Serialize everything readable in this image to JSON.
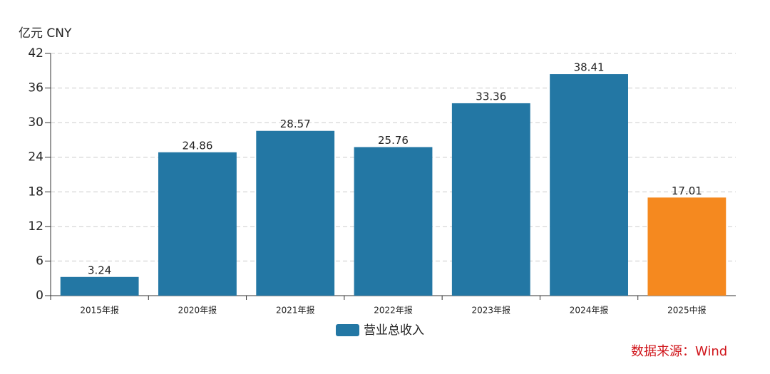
{
  "chart_data": {
    "type": "bar",
    "y_unit": "亿元  CNY",
    "categories": [
      "2015年报",
      "2020年报",
      "2021年报",
      "2022年报",
      "2023年报",
      "2024年报",
      "2025中报"
    ],
    "series": [
      {
        "name": "营业总收入",
        "color": "#2377a4",
        "colors": [
          "#2377a4",
          "#2377a4",
          "#2377a4",
          "#2377a4",
          "#2377a4",
          "#2377a4",
          "#f5891f"
        ],
        "values": [
          3.24,
          24.86,
          28.57,
          25.76,
          33.36,
          38.41,
          17.01
        ]
      }
    ],
    "ylim": [
      0,
      42
    ],
    "yticks": [
      0,
      6,
      12,
      18,
      24,
      30,
      36,
      42
    ],
    "grid": true,
    "source": "数据来源：Wind"
  }
}
